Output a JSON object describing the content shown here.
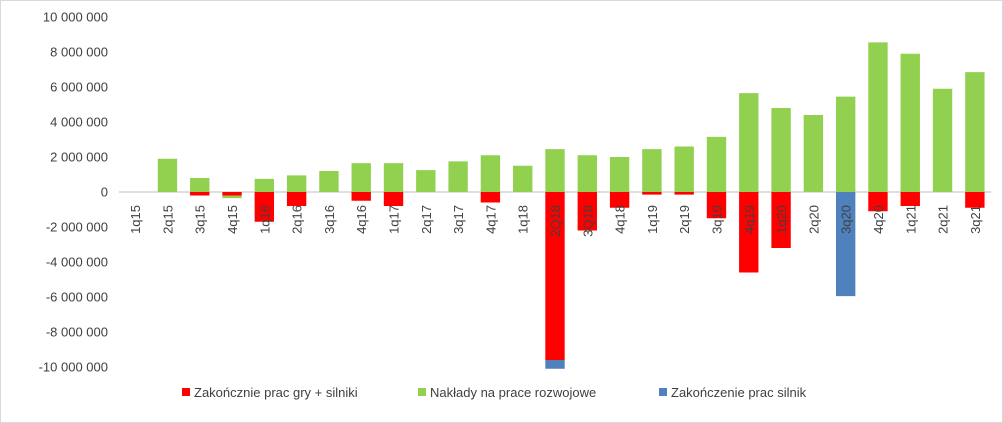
{
  "chart_data": {
    "type": "bar",
    "stacked": true,
    "categories": [
      "1q15",
      "2q15",
      "3q15",
      "4q15",
      "1q16",
      "2q16",
      "3q16",
      "4q16",
      "1q17",
      "2q17",
      "3q17",
      "4q17",
      "1q18",
      "2Q18",
      "3Q18",
      "4q18",
      "1q19",
      "2q19",
      "3q19",
      "4q19",
      "1q20",
      "2q20",
      "3q20",
      "4q20",
      "1q21",
      "2q21",
      "3q21"
    ],
    "series": [
      {
        "name": "Zakończnie prac gry + silniki",
        "color": "#ff0000",
        "values": [
          0,
          0,
          -200000,
          -200000,
          -1700000,
          -800000,
          0,
          -500000,
          -800000,
          0,
          0,
          -600000,
          0,
          -9600000,
          -2200000,
          -900000,
          -150000,
          -150000,
          -1500000,
          -4600000,
          -3200000,
          0,
          0,
          -1100000,
          -800000,
          0,
          -900000
        ]
      },
      {
        "name": "Nakłady na prace rozwojowe",
        "color": "#92d050",
        "values": [
          0,
          1900000,
          800000,
          -150000,
          750000,
          950000,
          1200000,
          1650000,
          1650000,
          1250000,
          1750000,
          2100000,
          1500000,
          2450000,
          2100000,
          2000000,
          2450000,
          2600000,
          3150000,
          5650000,
          4800000,
          4400000,
          5450000,
          8550000,
          7900000,
          5900000,
          6850000
        ]
      },
      {
        "name": "Zakończenie prac silnik",
        "color": "#4f81bd",
        "values": [
          0,
          0,
          0,
          0,
          0,
          0,
          0,
          0,
          0,
          0,
          0,
          0,
          0,
          -500000,
          0,
          0,
          0,
          0,
          0,
          0,
          0,
          0,
          -5950000,
          0,
          0,
          0,
          0
        ]
      }
    ],
    "ylim": [
      -10000000,
      10000000
    ],
    "yticks": [
      "10 000 000",
      "8 000 000",
      "6 000 000",
      "4 000 000",
      "2 000 000",
      "0",
      "-2 000 000",
      "-4 000 000",
      "-6 000 000",
      "-8 000 000",
      "-10 000 000"
    ],
    "grid": false,
    "legend_position": "bottom",
    "title": "",
    "xlabel": "",
    "ylabel": ""
  }
}
